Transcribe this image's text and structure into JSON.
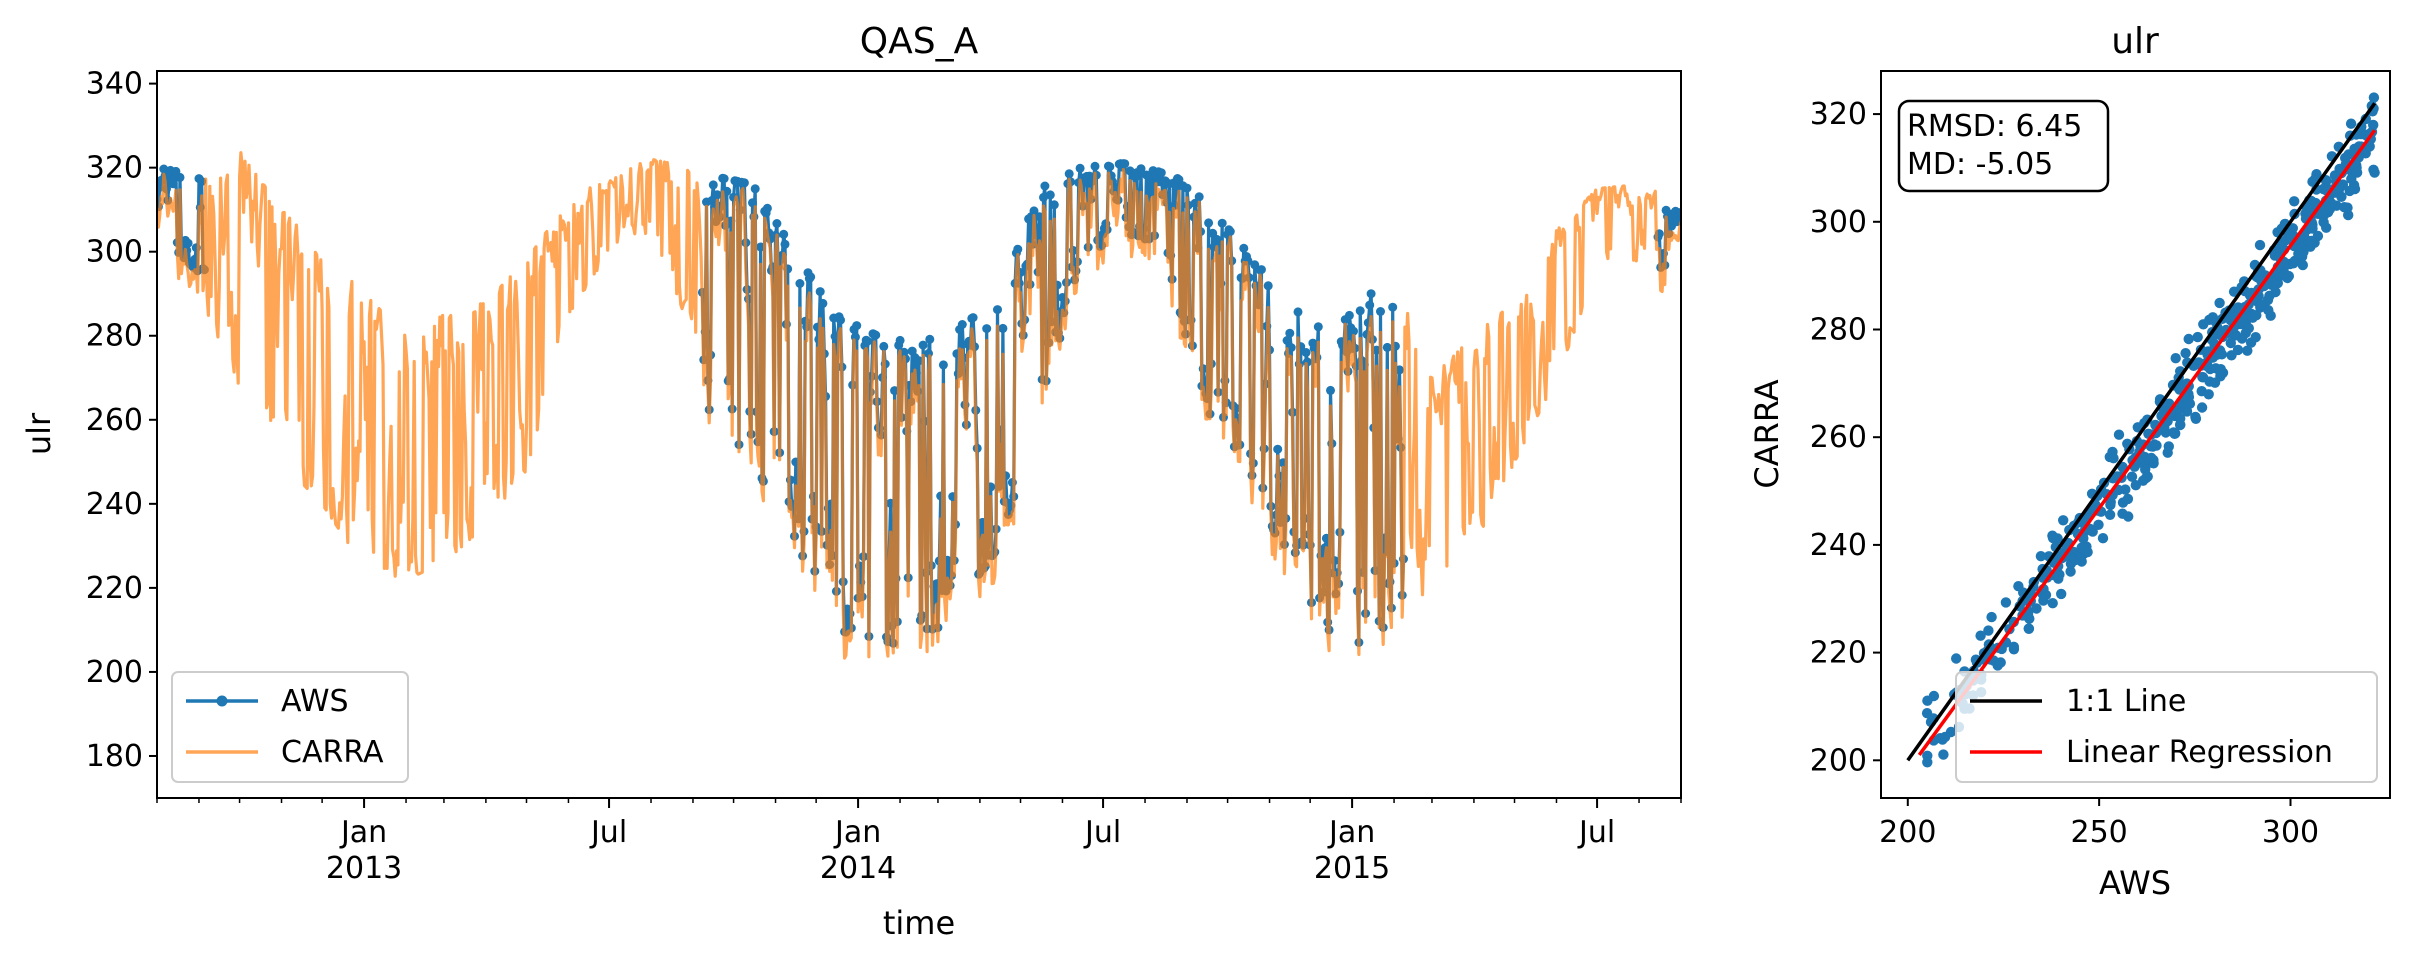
{
  "chart_data": [
    {
      "type": "line",
      "title": "QAS_A",
      "xlabel": "time",
      "ylabel": "ulr",
      "xlim": [
        "2012-08-01",
        "2015-09-01"
      ],
      "ylim": [
        170,
        343
      ],
      "yticks": [
        180,
        200,
        220,
        240,
        260,
        280,
        300,
        320,
        340
      ],
      "xticks": [
        {
          "date": "2013-01-01",
          "line1": "Jan",
          "line2": "2013"
        },
        {
          "date": "2013-07-01",
          "line1": "Jul",
          "line2": ""
        },
        {
          "date": "2014-01-01",
          "line1": "Jan",
          "line2": "2014"
        },
        {
          "date": "2014-07-01",
          "line1": "Jul",
          "line2": ""
        },
        {
          "date": "2015-01-01",
          "line1": "Jan",
          "line2": "2015"
        },
        {
          "date": "2015-07-01",
          "line1": "Jul",
          "line2": ""
        }
      ],
      "legend_position": "lower-left",
      "grid": false,
      "series": [
        {
          "name": "AWS",
          "color": "#1f77b4",
          "marker": "circle",
          "segments": [
            {
              "start": "2012-08-01",
              "end": "2012-09-05"
            },
            {
              "start": "2013-09-08",
              "end": "2015-02-08"
            },
            {
              "start": "2015-08-15",
              "end": "2015-09-01"
            }
          ],
          "envelope": {
            "x": [
              "2012-08-01",
              "2012-09-01",
              "2013-09-15",
              "2013-10-15",
              "2013-11-15",
              "2013-12-15",
              "2014-01-15",
              "2014-02-15",
              "2014-03-15",
              "2014-04-15",
              "2014-05-15",
              "2014-06-15",
              "2014-07-15",
              "2014-08-15",
              "2014-09-15",
              "2014-10-15",
              "2014-11-15",
              "2014-12-15",
              "2015-01-15",
              "2015-02-08",
              "2015-08-15",
              "2015-09-01"
            ],
            "hi": [
              320,
              318,
              318,
              316,
              300,
              285,
              280,
              278,
              282,
              288,
              315,
              320,
              321,
              320,
              312,
              300,
              288,
              280,
              290,
              288,
              312,
              310
            ],
            "lo": [
              305,
              295,
              262,
              250,
              232,
              210,
              208,
              205,
              215,
              230,
              262,
              298,
              305,
              300,
              262,
              250,
              225,
              210,
              205,
              215,
              295,
              295
            ]
          }
        },
        {
          "name": "CARRA",
          "color": "#ff7f0e",
          "alpha": 0.7,
          "range": [
            "2012-08-01",
            "2015-09-01"
          ],
          "envelope": {
            "x": [
              "2012-08-01",
              "2012-09-01",
              "2012-10-01",
              "2012-11-01",
              "2012-12-01",
              "2013-01-01",
              "2013-02-01",
              "2013-03-01",
              "2013-04-01",
              "2013-05-01",
              "2013-06-01",
              "2013-07-01",
              "2013-08-01",
              "2013-09-01",
              "2013-10-01",
              "2013-11-01",
              "2013-12-01",
              "2014-01-01",
              "2014-02-01",
              "2014-03-01",
              "2014-04-01",
              "2014-05-01",
              "2014-06-01",
              "2014-07-01",
              "2014-08-01",
              "2014-09-01",
              "2014-10-01",
              "2014-11-01",
              "2014-12-01",
              "2015-01-01",
              "2015-02-01",
              "2015-03-01",
              "2015-04-01",
              "2015-05-01",
              "2015-06-01",
              "2015-07-01",
              "2015-08-01",
              "2015-09-01"
            ],
            "hi": [
              318,
              318,
              324,
              310,
              300,
              290,
              280,
              285,
              288,
              298,
              312,
              318,
              322,
              320,
              312,
              290,
              280,
              272,
              272,
              276,
              288,
              310,
              318,
              318,
              318,
              312,
              300,
              285,
              282,
              290,
              300,
              270,
              280,
              288,
              305,
              315,
              316,
              312
            ],
            "lo": [
              300,
              290,
              268,
              250,
              240,
              225,
              222,
              226,
              235,
              248,
              285,
              300,
              305,
              280,
              255,
              235,
              212,
              205,
              208,
              220,
              240,
              272,
              300,
              303,
              298,
              268,
              245,
              218,
              205,
              200,
              212,
              220,
              230,
              250,
              270,
              295,
              298,
              298
            ]
          }
        }
      ]
    },
    {
      "type": "scatter",
      "title": "ulr",
      "xlabel": "AWS",
      "ylabel": "CARRA",
      "xlim": [
        193,
        326
      ],
      "ylim": [
        193,
        328
      ],
      "xticks": [
        200,
        250,
        300
      ],
      "yticks": [
        200,
        220,
        240,
        260,
        280,
        300,
        320
      ],
      "stats": {
        "rmsd": "RMSD: 6.45",
        "md": "MD: -5.05"
      },
      "legend_position": "lower-right",
      "grid": false,
      "points": {
        "color": "#1f77b4",
        "x_range": [
          203,
          322
        ],
        "fit_slope": 0.973,
        "fit_intercept": 3.48,
        "scatter_spread": 3.5
      },
      "lines": [
        {
          "name": "1:1 Line",
          "color": "#000000",
          "x": [
            200,
            322
          ],
          "y": [
            200,
            322
          ]
        },
        {
          "name": "Linear Regression",
          "color": "#ff0000",
          "x": [
            203,
            322
          ],
          "y": [
            201,
            317
          ]
        }
      ]
    }
  ]
}
